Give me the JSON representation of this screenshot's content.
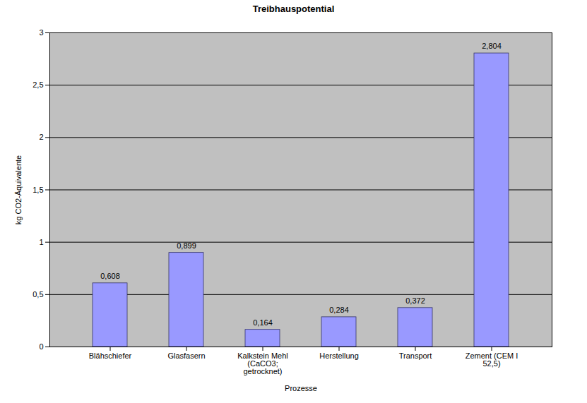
{
  "chart_data": {
    "type": "bar",
    "title": "Treibhauspotential",
    "x_label": "Prozesse",
    "y_label": "kg CO2-Äquivalente",
    "categories": [
      "Blähschiefer",
      "Glasfasern",
      "Kalkstein Mehl (CaCO3; getrocknet)",
      "Herstellung",
      "Transport",
      "Zement (CEM I 52,5)"
    ],
    "values": [
      0.608,
      0.899,
      0.164,
      0.284,
      0.372,
      2.804
    ],
    "value_labels": [
      "0,608",
      "0,899",
      "0,164",
      "0,284",
      "0,372",
      "2,804"
    ],
    "color": "#9999ff",
    "ylim": [
      0,
      3
    ],
    "yticks": [
      0,
      {
        "value": 0.5,
        "label": "0,5"
      },
      1,
      {
        "value": 1.5,
        "label": "1,5"
      },
      2,
      {
        "value": 2.5,
        "label": "2,5"
      },
      3
    ],
    "grid": true,
    "data_labels": true
  }
}
